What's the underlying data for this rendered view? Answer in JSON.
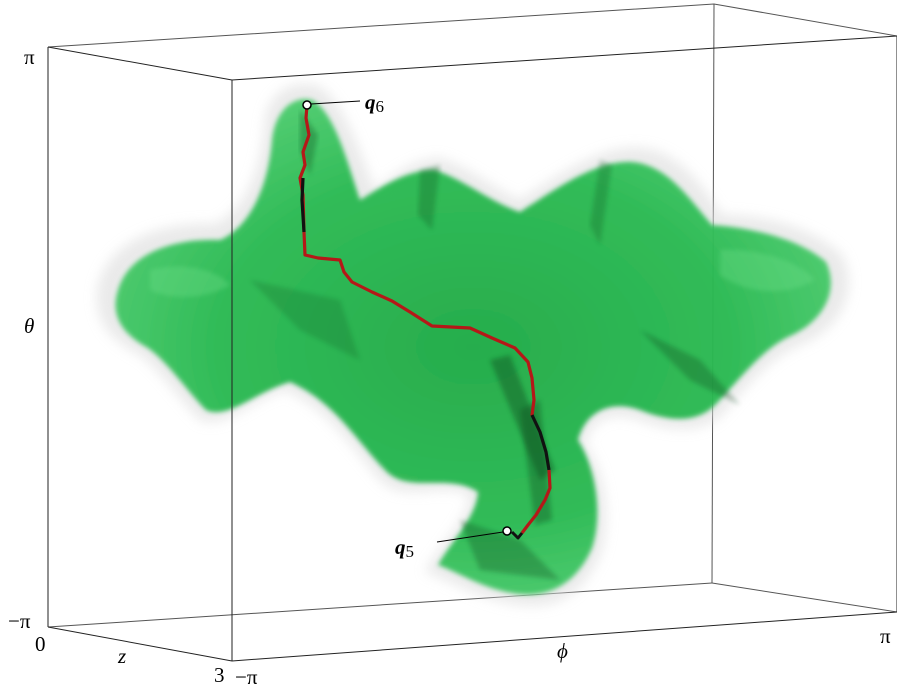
{
  "axes": {
    "theta": {
      "label": "θ",
      "max_label": "π",
      "min_label": "−π"
    },
    "phi": {
      "label": "ϕ",
      "min_label": "−π",
      "max_label": "π"
    },
    "z": {
      "label": "z",
      "min_label": "0",
      "max_label": "3"
    }
  },
  "points": {
    "start": {
      "name": "q",
      "sub": "6"
    },
    "goal": {
      "name": "q",
      "sub": "5"
    }
  },
  "colors": {
    "free_space": "#1db94a",
    "path_primary": "#b51818",
    "path_secondary": "#111111"
  }
}
